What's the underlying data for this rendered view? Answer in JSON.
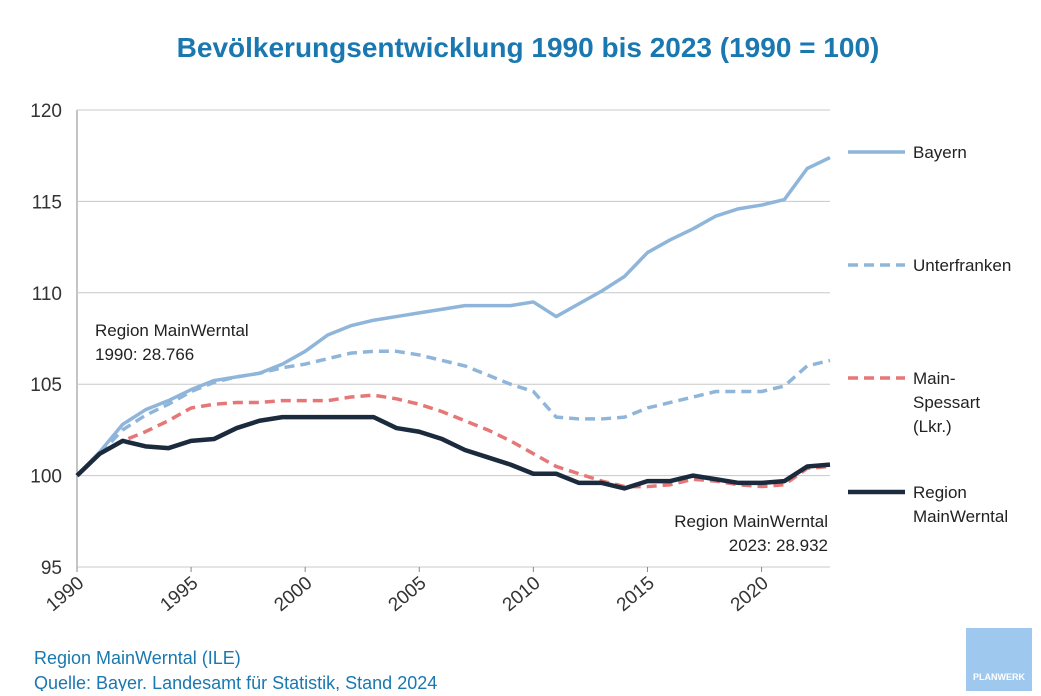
{
  "chart_data": {
    "type": "line",
    "title": "Bevölkerungsentwicklung 1990 bis 2023 (1990 = 100)",
    "x": [
      1990,
      1991,
      1992,
      1993,
      1994,
      1995,
      1996,
      1997,
      1998,
      1999,
      2000,
      2001,
      2002,
      2003,
      2004,
      2005,
      2006,
      2007,
      2008,
      2009,
      2010,
      2011,
      2012,
      2013,
      2014,
      2015,
      2016,
      2017,
      2018,
      2019,
      2020,
      2021,
      2022,
      2023
    ],
    "series": [
      {
        "name": "Bayern",
        "color": "#8fb6da",
        "dash": false,
        "values": [
          100,
          101.3,
          102.8,
          103.6,
          104.1,
          104.7,
          105.2,
          105.4,
          105.6,
          106.1,
          106.8,
          107.7,
          108.2,
          108.5,
          108.7,
          108.9,
          109.1,
          109.3,
          109.3,
          109.3,
          109.5,
          108.7,
          109.4,
          110.1,
          110.9,
          112.2,
          112.9,
          113.5,
          114.2,
          114.6,
          114.8,
          115.1,
          116.8,
          117.4
        ]
      },
      {
        "name": "Unterfranken",
        "color": "#8fb6da",
        "dash": true,
        "values": [
          100,
          101.2,
          102.5,
          103.3,
          103.9,
          104.6,
          105.1,
          105.4,
          105.6,
          105.9,
          106.1,
          106.4,
          106.7,
          106.8,
          106.8,
          106.6,
          106.3,
          106.0,
          105.5,
          105.0,
          104.6,
          103.2,
          103.1,
          103.1,
          103.2,
          103.7,
          104.0,
          104.3,
          104.6,
          104.6,
          104.6,
          104.9,
          106.0,
          106.3
        ]
      },
      {
        "name": "Main-\nSpessart\n(Lkr.)",
        "color": "#e57777",
        "dash": true,
        "values": [
          100,
          101.2,
          101.9,
          102.4,
          103.0,
          103.7,
          103.9,
          104.0,
          104.0,
          104.1,
          104.1,
          104.1,
          104.3,
          104.4,
          104.2,
          103.9,
          103.5,
          103.0,
          102.5,
          101.9,
          101.2,
          100.5,
          100.1,
          99.7,
          99.4,
          99.4,
          99.5,
          99.8,
          99.7,
          99.5,
          99.4,
          99.5,
          100.4,
          100.5
        ]
      },
      {
        "name": "Region\nMainWerntal",
        "color": "#1b2a3d",
        "dash": false,
        "values": [
          100,
          101.2,
          101.9,
          101.6,
          101.5,
          101.9,
          102.0,
          102.6,
          103.0,
          103.2,
          103.2,
          103.2,
          103.2,
          103.2,
          102.6,
          102.4,
          102.0,
          101.4,
          101.0,
          100.6,
          100.1,
          100.1,
          99.6,
          99.6,
          99.3,
          99.7,
          99.7,
          100.0,
          99.8,
          99.6,
          99.6,
          99.7,
          100.5,
          100.6
        ]
      }
    ],
    "xlim": [
      1990,
      2023
    ],
    "xticks": [
      1990,
      1995,
      2000,
      2005,
      2010,
      2015,
      2020
    ],
    "ylim": [
      95,
      120
    ],
    "yticks": [
      95,
      100,
      105,
      110,
      115,
      120
    ],
    "grid": true,
    "legend": "right",
    "annotations": [
      "Region MainWerntal\n1990: 28.766",
      "Region MainWerntal\n2023: 28.932"
    ],
    "footer": [
      "Region MainWerntal (ILE)",
      "Quelle: Bayer. Landesamt für Statistik, Stand 2024"
    ],
    "logo": "PLANWERK"
  }
}
